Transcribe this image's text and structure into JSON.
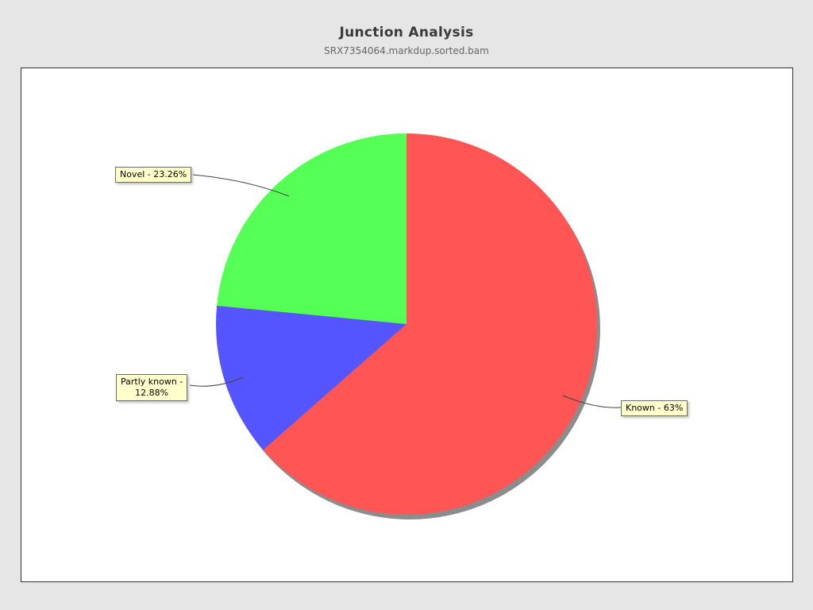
{
  "header": {
    "title": "Junction Analysis",
    "subtitle": "SRX7354064.markdup.sorted.bam"
  },
  "chart_data": {
    "type": "pie",
    "title": "Junction Analysis",
    "subtitle": "SRX7354064.markdup.sorted.bam",
    "start_angle_deg": 0,
    "direction": "clockwise",
    "shadow": true,
    "slices": [
      {
        "label": "Known",
        "value": 63,
        "display": "Known - 63%",
        "color": "#ff5555"
      },
      {
        "label": "Partly known",
        "value": 12.88,
        "display": "Partly known - 12.88%",
        "color": "#5555ff"
      },
      {
        "label": "Novel",
        "value": 23.26,
        "display": "Novel - 23.26%",
        "color": "#55ff55"
      }
    ],
    "legend_position": "none",
    "labels_style": "callout-boxes"
  },
  "callouts": {
    "novel": {
      "text": "Novel - 23.26%"
    },
    "partly": {
      "line1": "Partly known -",
      "line2": "12.88%"
    },
    "known": {
      "text": "Known - 63%"
    }
  },
  "colors": {
    "background": "#e6e6e6",
    "panel_background": "#ffffff",
    "panel_border": "#333333",
    "callout_background": "#ffffcc",
    "callout_border": "#6e6e6e",
    "shadow": "#8c8c8c",
    "known_slice": "#ff5555",
    "partly_known_slice": "#5555ff",
    "novel_slice": "#55ff55"
  }
}
